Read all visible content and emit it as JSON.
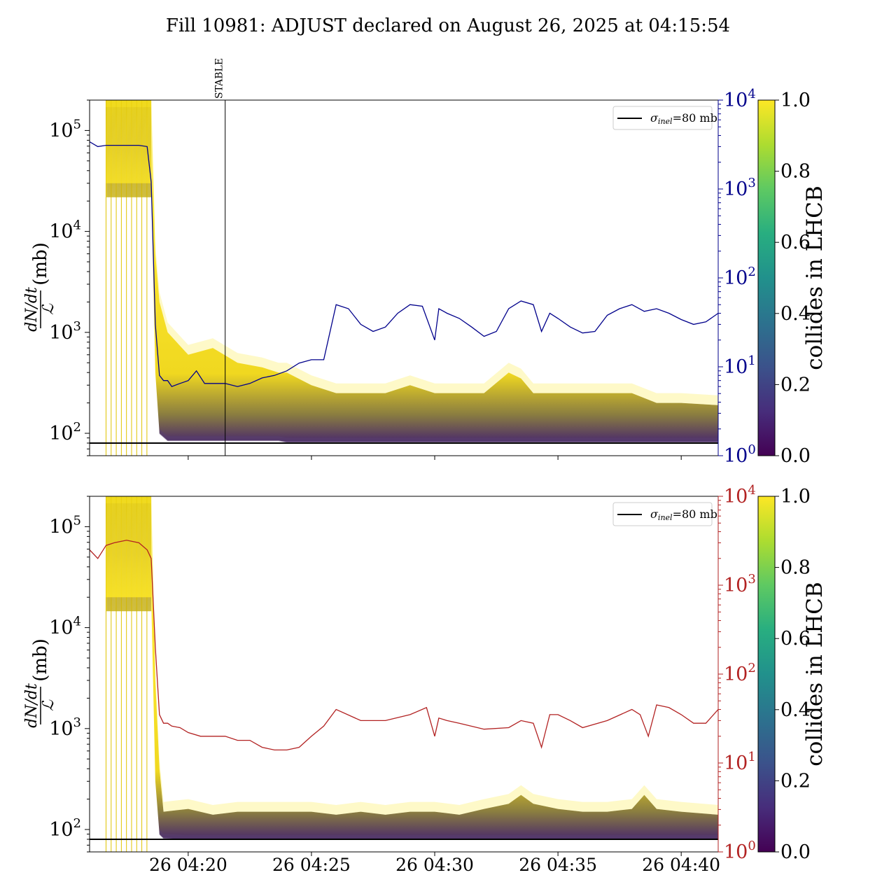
{
  "title": "Fill 10981: ADJUST declared on August 26, 2025 at 04:15:54",
  "chart_data": [
    {
      "type": "line",
      "panel": "top",
      "y_scale": "log",
      "ylim": [
        60,
        200000
      ],
      "ylabel_numerator": "dN/dt",
      "ylabel_denominator": "ℒ",
      "ylabel_unit": "(mb)",
      "y_ticks": [
        100,
        1000,
        10000,
        100000
      ],
      "y2_scale": "log",
      "y2lim": [
        1,
        10000
      ],
      "y2_ticks": [
        1,
        10,
        100,
        1000,
        10000
      ],
      "y2_color": "#00008b",
      "legend": {
        "placement": "top-right",
        "label": "σinel=80 mb",
        "label_main": "σ",
        "label_sub": "inel",
        "label_rest": "=80 mb"
      },
      "reference_line": {
        "y": 80,
        "color": "#000000"
      },
      "annotation": {
        "label": "STABLE",
        "time": "04:21:30"
      },
      "colorbar": {
        "label": "collides in LHCB",
        "ticks": [
          "0.0",
          "0.2",
          "0.4",
          "0.6",
          "0.8",
          "1.0"
        ],
        "range": [
          0,
          1
        ],
        "colormap": "viridis"
      },
      "series_y2": {
        "color": "#00008b",
        "time": [
          "04:16:00",
          "04:16:20",
          "04:16:40",
          "04:17:00",
          "04:17:30",
          "04:18:00",
          "04:18:20",
          "04:18:30",
          "04:18:40",
          "04:18:50",
          "04:19:00",
          "04:19:10",
          "04:19:20",
          "04:19:40",
          "04:20:00",
          "04:20:20",
          "04:20:40",
          "04:21:00",
          "04:21:30",
          "04:22:00",
          "04:22:30",
          "04:23:00",
          "04:23:30",
          "04:24:00",
          "04:24:30",
          "04:25:00",
          "04:25:30",
          "04:26:00",
          "04:26:30",
          "04:27:00",
          "04:27:30",
          "04:28:00",
          "04:28:30",
          "04:29:00",
          "04:29:30",
          "04:30:00",
          "04:30:10",
          "04:30:30",
          "04:31:00",
          "04:31:30",
          "04:32:00",
          "04:32:30",
          "04:33:00",
          "04:33:30",
          "04:34:00",
          "04:34:20",
          "04:34:40",
          "04:35:00",
          "04:35:30",
          "04:36:00",
          "04:36:30",
          "04:37:00",
          "04:37:30",
          "04:38:00",
          "04:38:30",
          "04:39:00",
          "04:39:30",
          "04:40:00",
          "04:40:30",
          "04:41:00",
          "04:41:30"
        ],
        "values": [
          3400,
          3000,
          3100,
          3100,
          3100,
          3100,
          3000,
          1200,
          30,
          8,
          7,
          7,
          6,
          6.5,
          7,
          9,
          6.5,
          6.5,
          6.5,
          6,
          6.5,
          7.5,
          8,
          9,
          11,
          12,
          12,
          50,
          45,
          30,
          25,
          28,
          40,
          50,
          48,
          20,
          45,
          40,
          35,
          28,
          22,
          25,
          45,
          55,
          50,
          25,
          40,
          35,
          28,
          24,
          25,
          38,
          45,
          50,
          42,
          45,
          40,
          34,
          30,
          32,
          40
        ]
      },
      "envelope": {
        "time": [
          "04:16:40",
          "04:17:00",
          "04:17:30",
          "04:18:00",
          "04:18:30",
          "04:18:40",
          "04:18:50",
          "04:19:10",
          "04:20:00",
          "04:21:00",
          "04:22:00",
          "04:23:00",
          "04:23:40",
          "04:24:00",
          "04:25:00",
          "04:26:00",
          "04:27:00",
          "04:28:00",
          "04:29:00",
          "04:30:00",
          "04:31:00",
          "04:32:00",
          "04:33:00",
          "04:33:30",
          "04:34:00",
          "04:35:00",
          "04:36:00",
          "04:37:00",
          "04:38:00",
          "04:39:00",
          "04:40:00",
          "04:41:30"
        ],
        "upper": [
          200000,
          200000,
          200000,
          200000,
          200000,
          6000,
          2000,
          1000,
          600,
          700,
          500,
          450,
          400,
          400,
          300,
          250,
          250,
          250,
          300,
          250,
          250,
          250,
          400,
          350,
          250,
          250,
          250,
          250,
          250,
          200,
          200,
          190
        ],
        "lower": [
          30000,
          30000,
          30000,
          30000,
          30000,
          400,
          100,
          85,
          85,
          85,
          85,
          85,
          85,
          82,
          82,
          82,
          82,
          82,
          82,
          82,
          82,
          82,
          82,
          82,
          82,
          82,
          82,
          82,
          82,
          82,
          82,
          82
        ]
      }
    },
    {
      "type": "line",
      "panel": "bottom",
      "y_scale": "log",
      "ylim": [
        60,
        200000
      ],
      "ylabel_numerator": "dN/dt",
      "ylabel_denominator": "ℒ",
      "ylabel_unit": "(mb)",
      "y_ticks": [
        100,
        1000,
        10000,
        100000
      ],
      "y2_scale": "log",
      "y2lim": [
        1,
        10000
      ],
      "y2_ticks": [
        1,
        10,
        100,
        1000,
        10000
      ],
      "y2_color": "#b22222",
      "legend": {
        "placement": "top-right",
        "label": "σinel=80 mb",
        "label_main": "σ",
        "label_sub": "inel",
        "label_rest": "=80 mb"
      },
      "reference_line": {
        "y": 80,
        "color": "#000000"
      },
      "colorbar": {
        "label": "collides in LHCB",
        "ticks": [
          "0.0",
          "0.2",
          "0.4",
          "0.6",
          "0.8",
          "1.0"
        ],
        "range": [
          0,
          1
        ],
        "colormap": "viridis"
      },
      "x_ticks": [
        "26 04:20",
        "26 04:25",
        "26 04:30",
        "26 04:35",
        "26 04:40"
      ],
      "series_y2": {
        "color": "#b22222",
        "time": [
          "04:16:00",
          "04:16:20",
          "04:16:40",
          "04:17:00",
          "04:17:30",
          "04:18:00",
          "04:18:20",
          "04:18:30",
          "04:18:40",
          "04:18:50",
          "04:19:00",
          "04:19:10",
          "04:19:20",
          "04:19:40",
          "04:20:00",
          "04:20:30",
          "04:21:00",
          "04:21:30",
          "04:22:00",
          "04:22:30",
          "04:23:00",
          "04:23:30",
          "04:24:00",
          "04:24:30",
          "04:25:00",
          "04:25:30",
          "04:26:00",
          "04:27:00",
          "04:28:00",
          "04:29:00",
          "04:29:40",
          "04:30:00",
          "04:30:10",
          "04:30:30",
          "04:31:00",
          "04:32:00",
          "04:33:00",
          "04:33:30",
          "04:34:00",
          "04:34:20",
          "04:34:40",
          "04:35:00",
          "04:35:30",
          "04:36:00",
          "04:37:00",
          "04:38:00",
          "04:38:20",
          "04:38:40",
          "04:39:00",
          "04:39:30",
          "04:40:00",
          "04:40:30",
          "04:41:00",
          "04:41:30"
        ],
        "values": [
          2500,
          2000,
          2800,
          3000,
          3200,
          3000,
          2500,
          2000,
          200,
          35,
          28,
          28,
          26,
          25,
          22,
          20,
          20,
          20,
          18,
          18,
          15,
          14,
          14,
          15,
          20,
          26,
          40,
          30,
          30,
          35,
          42,
          20,
          32,
          30,
          28,
          24,
          25,
          30,
          28,
          15,
          35,
          35,
          30,
          25,
          30,
          40,
          35,
          20,
          45,
          42,
          35,
          28,
          28,
          40
        ]
      },
      "envelope": {
        "time": [
          "04:16:40",
          "04:17:00",
          "04:17:30",
          "04:18:00",
          "04:18:30",
          "04:18:40",
          "04:18:50",
          "04:19:00",
          "04:20:00",
          "04:21:00",
          "04:22:00",
          "04:23:00",
          "04:24:00",
          "04:25:00",
          "04:26:00",
          "04:27:00",
          "04:28:00",
          "04:29:00",
          "04:30:00",
          "04:31:00",
          "04:32:00",
          "04:33:00",
          "04:33:30",
          "04:34:00",
          "04:35:00",
          "04:36:00",
          "04:37:00",
          "04:38:00",
          "04:38:30",
          "04:39:00",
          "04:40:00",
          "04:41:30"
        ],
        "upper": [
          200000,
          200000,
          200000,
          200000,
          200000,
          3000,
          400,
          150,
          160,
          140,
          150,
          150,
          150,
          150,
          140,
          150,
          140,
          150,
          150,
          140,
          160,
          180,
          220,
          180,
          160,
          150,
          150,
          160,
          220,
          160,
          150,
          140
        ],
        "lower": [
          20000,
          20000,
          20000,
          20000,
          20000,
          300,
          90,
          82,
          80,
          80,
          80,
          80,
          80,
          80,
          80,
          80,
          80,
          80,
          80,
          80,
          80,
          80,
          80,
          80,
          80,
          80,
          80,
          80,
          80,
          80,
          80,
          80
        ]
      }
    }
  ]
}
